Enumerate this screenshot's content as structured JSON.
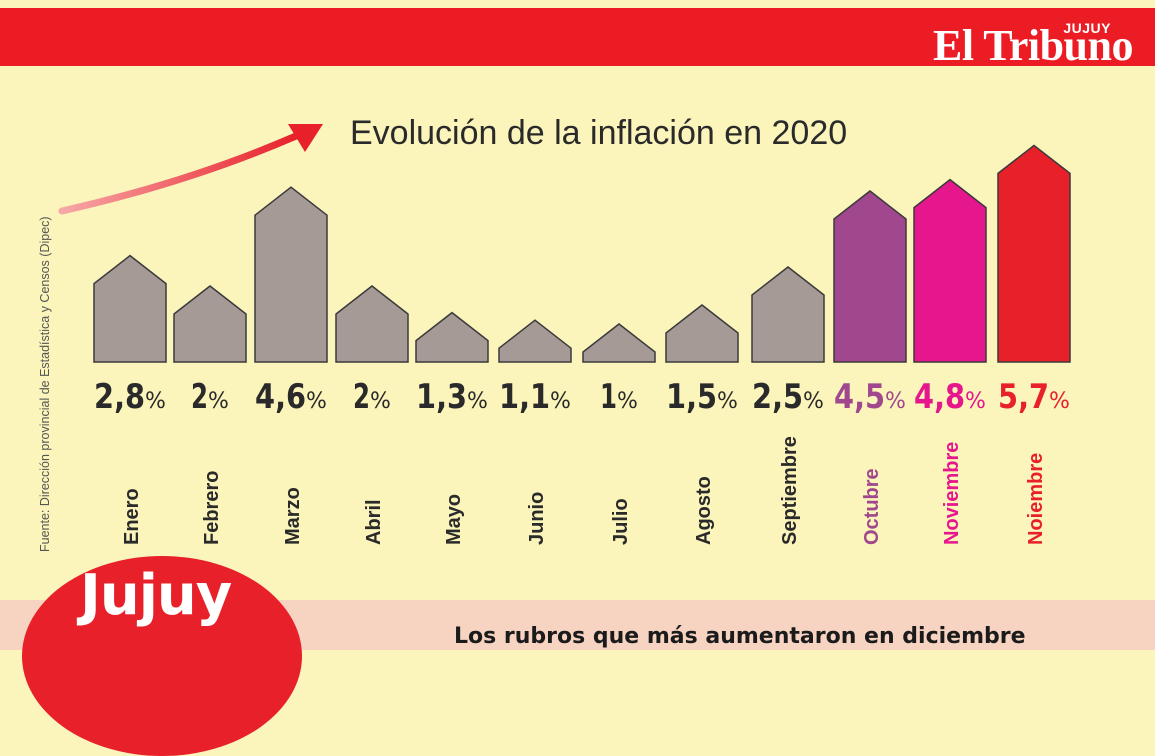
{
  "header": {
    "brand_region": "JUJUY",
    "brand_name": "El Tribuno"
  },
  "source_note": "Fuente: Dirección provincial de Estadística y Censos (Dipec)",
  "chart_data": {
    "type": "bar",
    "title": "Evolución de la inflación en 2020",
    "xlabel": "",
    "ylabel": "",
    "unit": "%",
    "categories": [
      "Enero",
      "Febrero",
      "Marzo",
      "Abril",
      "Mayo",
      "Junio",
      "Julio",
      "Agosto",
      "Septiembre",
      "Octubre",
      "Noviembre",
      "Noiembre"
    ],
    "values": [
      2.8,
      2,
      4.6,
      2,
      1.3,
      1.1,
      1,
      1.5,
      2.5,
      4.5,
      4.8,
      5.7
    ],
    "value_labels": [
      "2,8",
      "2",
      "4,6",
      "2",
      "1,3",
      "1,1",
      "1",
      "1,5",
      "2,5",
      "4,5",
      "4,8",
      "5,7"
    ],
    "colors": [
      "#a69a97",
      "#a69a97",
      "#a69a97",
      "#a69a97",
      "#a69a97",
      "#a69a97",
      "#a69a97",
      "#a69a97",
      "#a69a97",
      "#a1478d",
      "#e6168c",
      "#e8202a"
    ],
    "label_colors": [
      "#2a2a2a",
      "#2a2a2a",
      "#2a2a2a",
      "#2a2a2a",
      "#2a2a2a",
      "#2a2a2a",
      "#2a2a2a",
      "#2a2a2a",
      "#2a2a2a",
      "#a1478d",
      "#e6168c",
      "#e8202a"
    ],
    "grid": false,
    "legend": "none"
  },
  "footer": {
    "badge": "Jujuy",
    "subtitle": "Los rubros que más aumentaron en diciembre"
  },
  "theme": {
    "background": "#fbf4bb",
    "accent": "#ec1c24"
  }
}
